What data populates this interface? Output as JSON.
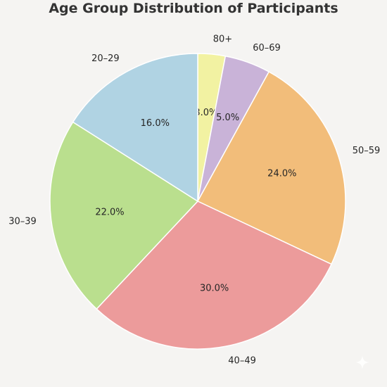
{
  "chart_data": {
    "type": "pie",
    "title": "Age Group Distribution of Participants",
    "start_angle_deg": 90,
    "direction": "clockwise",
    "slices": [
      {
        "label": "80+",
        "value": 3.0,
        "pct_label": "3.0%",
        "color": "#f2f2a2"
      },
      {
        "label": "60–69",
        "value": 5.0,
        "pct_label": "5.0%",
        "color": "#c9b3d8"
      },
      {
        "label": "50–59",
        "value": 24.0,
        "pct_label": "24.0%",
        "color": "#f2bd7a"
      },
      {
        "label": "40–49",
        "value": 30.0,
        "pct_label": "30.0%",
        "color": "#ec9b9b"
      },
      {
        "label": "30–39",
        "value": 22.0,
        "pct_label": "22.0%",
        "color": "#badf8e"
      },
      {
        "label": "20–29",
        "value": 16.0,
        "pct_label": "16.0%",
        "color": "#b0d3e3"
      }
    ]
  }
}
